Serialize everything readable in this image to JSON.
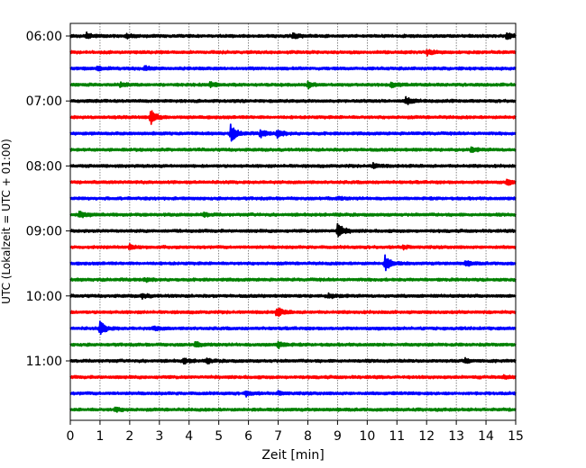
{
  "chart_data": {
    "type": "line",
    "title": "",
    "xlabel": "Zeit  [min]",
    "ylabel": "UTC (Lokalzeit = UTC + 01:00)",
    "xlim": [
      0,
      15
    ],
    "x_ticks": [
      0,
      1,
      2,
      3,
      4,
      5,
      6,
      7,
      8,
      9,
      10,
      11,
      12,
      13,
      14,
      15
    ],
    "x_tick_labels": [
      "0",
      "1",
      "2",
      "3",
      "4",
      "5",
      "6",
      "7",
      "8",
      "9",
      "10",
      "11",
      "12",
      "13",
      "14",
      "15"
    ],
    "y_tick_labels": [
      "06:00",
      "07:00",
      "08:00",
      "09:00",
      "10:00",
      "11:00"
    ],
    "grid": "vertical dotted lines at each minute",
    "trace_interval_minutes": 15,
    "color_cycle": [
      "#000000",
      "#ff0000",
      "#0000ff",
      "#008000"
    ],
    "traces": [
      {
        "start": "06:00",
        "color": "#000000",
        "events": [
          {
            "t": 0.55,
            "amp": 0.4
          },
          {
            "t": 1.9,
            "amp": 0.3
          },
          {
            "t": 7.5,
            "amp": 0.3
          },
          {
            "t": 14.7,
            "amp": 0.5
          }
        ]
      },
      {
        "start": "06:15",
        "color": "#ff0000",
        "events": [
          {
            "t": 12.0,
            "amp": 0.35
          }
        ]
      },
      {
        "start": "06:30",
        "color": "#0000ff",
        "events": [
          {
            "t": 0.9,
            "amp": 0.3
          },
          {
            "t": 2.5,
            "amp": 0.25
          }
        ]
      },
      {
        "start": "06:45",
        "color": "#008000",
        "events": [
          {
            "t": 1.7,
            "amp": 0.3
          },
          {
            "t": 4.7,
            "amp": 0.3
          },
          {
            "t": 8.0,
            "amp": 0.4
          },
          {
            "t": 10.8,
            "amp": 0.35
          }
        ]
      },
      {
        "start": "07:00",
        "color": "#000000",
        "events": [
          {
            "t": 11.3,
            "amp": 0.45
          }
        ]
      },
      {
        "start": "07:15",
        "color": "#ff0000",
        "events": [
          {
            "t": 2.7,
            "amp": 1.0
          }
        ]
      },
      {
        "start": "07:30",
        "color": "#0000ff",
        "events": [
          {
            "t": 5.4,
            "amp": 1.1
          },
          {
            "t": 6.4,
            "amp": 0.5
          },
          {
            "t": 6.95,
            "amp": 0.55
          }
        ]
      },
      {
        "start": "07:45",
        "color": "#008000",
        "events": [
          {
            "t": 13.5,
            "amp": 0.25
          }
        ]
      },
      {
        "start": "08:00",
        "color": "#000000",
        "events": [
          {
            "t": 10.2,
            "amp": 0.35
          }
        ]
      },
      {
        "start": "08:15",
        "color": "#ff0000",
        "events": [
          {
            "t": 14.7,
            "amp": 0.3
          }
        ]
      },
      {
        "start": "08:30",
        "color": "#0000ff",
        "events": [
          {
            "t": 9.0,
            "amp": 0.15
          }
        ]
      },
      {
        "start": "08:45",
        "color": "#008000",
        "events": [
          {
            "t": 0.3,
            "amp": 0.55
          },
          {
            "t": 4.5,
            "amp": 0.25
          }
        ]
      },
      {
        "start": "09:00",
        "color": "#000000",
        "events": [
          {
            "t": 9.0,
            "amp": 1.0
          }
        ]
      },
      {
        "start": "09:15",
        "color": "#ff0000",
        "events": [
          {
            "t": 2.0,
            "amp": 0.3
          },
          {
            "t": 11.2,
            "amp": 0.25
          }
        ]
      },
      {
        "start": "09:30",
        "color": "#0000ff",
        "events": [
          {
            "t": 10.6,
            "amp": 1.0
          },
          {
            "t": 13.3,
            "amp": 0.3
          }
        ]
      },
      {
        "start": "09:45",
        "color": "#008000",
        "events": [
          {
            "t": 2.5,
            "amp": 0.25
          }
        ]
      },
      {
        "start": "10:00",
        "color": "#000000",
        "events": [
          {
            "t": 2.4,
            "amp": 0.3
          },
          {
            "t": 8.7,
            "amp": 0.3
          }
        ]
      },
      {
        "start": "10:15",
        "color": "#ff0000",
        "events": [
          {
            "t": 6.95,
            "amp": 0.65
          }
        ]
      },
      {
        "start": "10:30",
        "color": "#0000ff",
        "events": [
          {
            "t": 1.0,
            "amp": 0.9
          },
          {
            "t": 2.8,
            "amp": 0.3
          }
        ]
      },
      {
        "start": "10:45",
        "color": "#008000",
        "events": [
          {
            "t": 4.2,
            "amp": 0.3
          },
          {
            "t": 7.0,
            "amp": 0.45
          }
        ]
      },
      {
        "start": "11:00",
        "color": "#000000",
        "events": [
          {
            "t": 3.8,
            "amp": 0.35
          },
          {
            "t": 4.6,
            "amp": 0.25
          },
          {
            "t": 13.3,
            "amp": 0.3
          }
        ]
      },
      {
        "start": "11:15",
        "color": "#ff0000",
        "events": [
          {
            "t": 14.6,
            "amp": 0.25
          }
        ]
      },
      {
        "start": "11:30",
        "color": "#0000ff",
        "events": [
          {
            "t": 5.9,
            "amp": 0.35
          },
          {
            "t": 7.0,
            "amp": 0.25
          }
        ]
      },
      {
        "start": "11:45",
        "color": "#008000",
        "events": [
          {
            "t": 1.5,
            "amp": 0.3
          }
        ]
      }
    ]
  }
}
